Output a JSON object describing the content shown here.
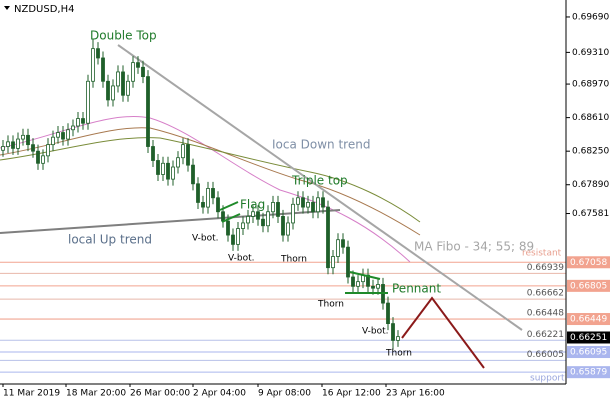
{
  "chart_data": {
    "type": "candlestick",
    "title": "NZDUSD,H4",
    "ylim": [
      0.65752,
      0.69872
    ],
    "yticks": [
      {
        "value": 0.6969,
        "label": "0.69690"
      },
      {
        "value": 0.6931,
        "label": "0.69310"
      },
      {
        "value": 0.6897,
        "label": "0.68970"
      },
      {
        "value": 0.6861,
        "label": "0.68610"
      },
      {
        "value": 0.6825,
        "label": "0.68250"
      },
      {
        "value": 0.6789,
        "label": "0.67890"
      },
      {
        "value": 0.67581,
        "label": "0.67581"
      }
    ],
    "x_labels": [
      "11 Mar 2019",
      "18 Mar 20:00",
      "26 Mar 00:00",
      "2 Apr 04:00",
      "9 Apr 08:00",
      "16 Apr 12:00",
      "23 Apr 16:00"
    ],
    "bull_color": "#ffffff",
    "bear_color": "#1f5f2a",
    "outline_color": "#1f5f2a",
    "open": [
      0.6826,
      0.683,
      0.6835,
      0.6828,
      0.6838,
      0.6842,
      0.6832,
      0.6825,
      0.6812,
      0.682,
      0.6832,
      0.684,
      0.6845,
      0.6838,
      0.6848,
      0.6852,
      0.686,
      0.6855,
      0.69,
      0.6935,
      0.6925,
      0.69,
      0.688,
      0.6895,
      0.691,
      0.6885,
      0.69,
      0.692,
      0.6915,
      0.6905,
      0.683,
      0.6815,
      0.68,
      0.6812,
      0.6795,
      0.6808,
      0.6818,
      0.6832,
      0.681,
      0.679,
      0.677,
      0.6765,
      0.6785,
      0.6775,
      0.676,
      0.675,
      0.6735,
      0.6725,
      0.6742,
      0.6748,
      0.6755,
      0.676,
      0.6752,
      0.6745,
      0.676,
      0.677,
      0.6755,
      0.6735,
      0.6748,
      0.6768,
      0.6775,
      0.6765,
      0.677,
      0.676,
      0.6775,
      0.6765,
      0.67,
      0.6712,
      0.673,
      0.6722,
      0.669,
      0.668,
      0.6685,
      0.6692,
      0.668,
      0.6678,
      0.6682,
      0.6662,
      0.664,
      0.6622
    ],
    "close": [
      0.683,
      0.6835,
      0.6828,
      0.6838,
      0.6842,
      0.6832,
      0.6825,
      0.6812,
      0.682,
      0.6832,
      0.684,
      0.6845,
      0.6838,
      0.6848,
      0.6852,
      0.686,
      0.6855,
      0.69,
      0.6935,
      0.6925,
      0.69,
      0.688,
      0.6895,
      0.691,
      0.6885,
      0.69,
      0.692,
      0.6915,
      0.6905,
      0.683,
      0.6815,
      0.68,
      0.6812,
      0.6795,
      0.6808,
      0.6818,
      0.6832,
      0.681,
      0.679,
      0.677,
      0.6765,
      0.6785,
      0.6775,
      0.676,
      0.675,
      0.6735,
      0.6725,
      0.6742,
      0.6748,
      0.6755,
      0.676,
      0.6752,
      0.6745,
      0.676,
      0.677,
      0.6755,
      0.6735,
      0.6748,
      0.6768,
      0.6775,
      0.6765,
      0.677,
      0.676,
      0.6775,
      0.6765,
      0.67,
      0.6712,
      0.673,
      0.6722,
      0.669,
      0.668,
      0.6685,
      0.6692,
      0.668,
      0.6678,
      0.6682,
      0.6662,
      0.664,
      0.6622,
      0.6626
    ],
    "high": [
      0.6837,
      0.6842,
      0.6842,
      0.6845,
      0.6849,
      0.6849,
      0.6839,
      0.6832,
      0.6827,
      0.6839,
      0.6847,
      0.6852,
      0.6852,
      0.6855,
      0.6859,
      0.6867,
      0.6867,
      0.6907,
      0.6945,
      0.6942,
      0.6932,
      0.6907,
      0.6902,
      0.6917,
      0.6917,
      0.6907,
      0.6927,
      0.6927,
      0.6922,
      0.6912,
      0.6837,
      0.6822,
      0.6819,
      0.6819,
      0.6815,
      0.6825,
      0.6839,
      0.6839,
      0.6817,
      0.6797,
      0.6777,
      0.6792,
      0.6792,
      0.6782,
      0.6767,
      0.6757,
      0.6742,
      0.6749,
      0.6755,
      0.6762,
      0.6767,
      0.6767,
      0.6759,
      0.6767,
      0.6777,
      0.6777,
      0.6762,
      0.6755,
      0.6775,
      0.6782,
      0.6782,
      0.6777,
      0.6777,
      0.6782,
      0.6782,
      0.6772,
      0.6719,
      0.6737,
      0.6737,
      0.6729,
      0.6697,
      0.6692,
      0.6699,
      0.6699,
      0.6687,
      0.6689,
      0.6689,
      0.6669,
      0.6647,
      0.6633
    ],
    "low": [
      0.6819,
      0.6823,
      0.6821,
      0.6821,
      0.6831,
      0.6825,
      0.6818,
      0.6805,
      0.6805,
      0.6813,
      0.6825,
      0.6833,
      0.6831,
      0.6831,
      0.6841,
      0.6845,
      0.6848,
      0.6848,
      0.6893,
      0.6918,
      0.6893,
      0.6873,
      0.6873,
      0.6888,
      0.6878,
      0.6878,
      0.6893,
      0.6908,
      0.6898,
      0.6823,
      0.6808,
      0.6793,
      0.6793,
      0.6788,
      0.6788,
      0.6801,
      0.6811,
      0.6803,
      0.6783,
      0.6763,
      0.6758,
      0.6758,
      0.6768,
      0.6753,
      0.6743,
      0.6728,
      0.6718,
      0.6718,
      0.6735,
      0.6741,
      0.6748,
      0.6745,
      0.6738,
      0.6738,
      0.6753,
      0.6748,
      0.6728,
      0.6728,
      0.6741,
      0.6761,
      0.6758,
      0.6758,
      0.6753,
      0.6753,
      0.6758,
      0.6693,
      0.6693,
      0.6705,
      0.6715,
      0.6683,
      0.6673,
      0.6673,
      0.6678,
      0.6673,
      0.6671,
      0.6671,
      0.6655,
      0.6633,
      0.6612,
      0.6615
    ],
    "levels": [
      {
        "value": 0.67058,
        "label": "0.67058",
        "style": "box",
        "color": "#f2a38f"
      },
      {
        "value": 0.66939,
        "label": "0.66939",
        "style": "text",
        "color": "#e8b7aa"
      },
      {
        "value": 0.66805,
        "label": "0.66805",
        "style": "box",
        "color": "#f2a38f"
      },
      {
        "value": 0.66662,
        "label": "0.66662",
        "style": "text",
        "color": "#e8b7aa"
      },
      {
        "value": 0.66448,
        "label": "0.66448",
        "style": "text",
        "color": "#e8b7aa"
      },
      {
        "value": 0.66449,
        "label": "0.66449",
        "style": "box",
        "color": "#f2a38f"
      },
      {
        "value": 0.66251,
        "label": "0.66251",
        "style": "current",
        "color": "#000000"
      },
      {
        "value": 0.66221,
        "label": "0.66221",
        "style": "text",
        "color": "#b7c1e8"
      },
      {
        "value": 0.66095,
        "label": "0.66095",
        "style": "box",
        "color": "#aab6ee"
      },
      {
        "value": 0.66005,
        "label": "0.66005",
        "style": "text",
        "color": "#b7c1e8"
      },
      {
        "value": 0.65879,
        "label": "0.65879",
        "style": "box",
        "color": "#aab6ee"
      }
    ],
    "annotations": {
      "double_top": "Double Top",
      "down_trend": "Ioca Down trend",
      "triple_top": "Triple top",
      "flag": "Flag",
      "up_trend": "local Up trend",
      "vbot_1": "V-bot.",
      "vbot_2": "V-bot.",
      "vbot_3": "V-bot.",
      "thorn_1": "Thorn",
      "thorn_2": "Thorn",
      "thorn_3": "Thorn",
      "pennant": "Pennant",
      "ma": "MA Fibo - 34; 55; 89",
      "resistant": "resistant",
      "support": "support"
    }
  }
}
